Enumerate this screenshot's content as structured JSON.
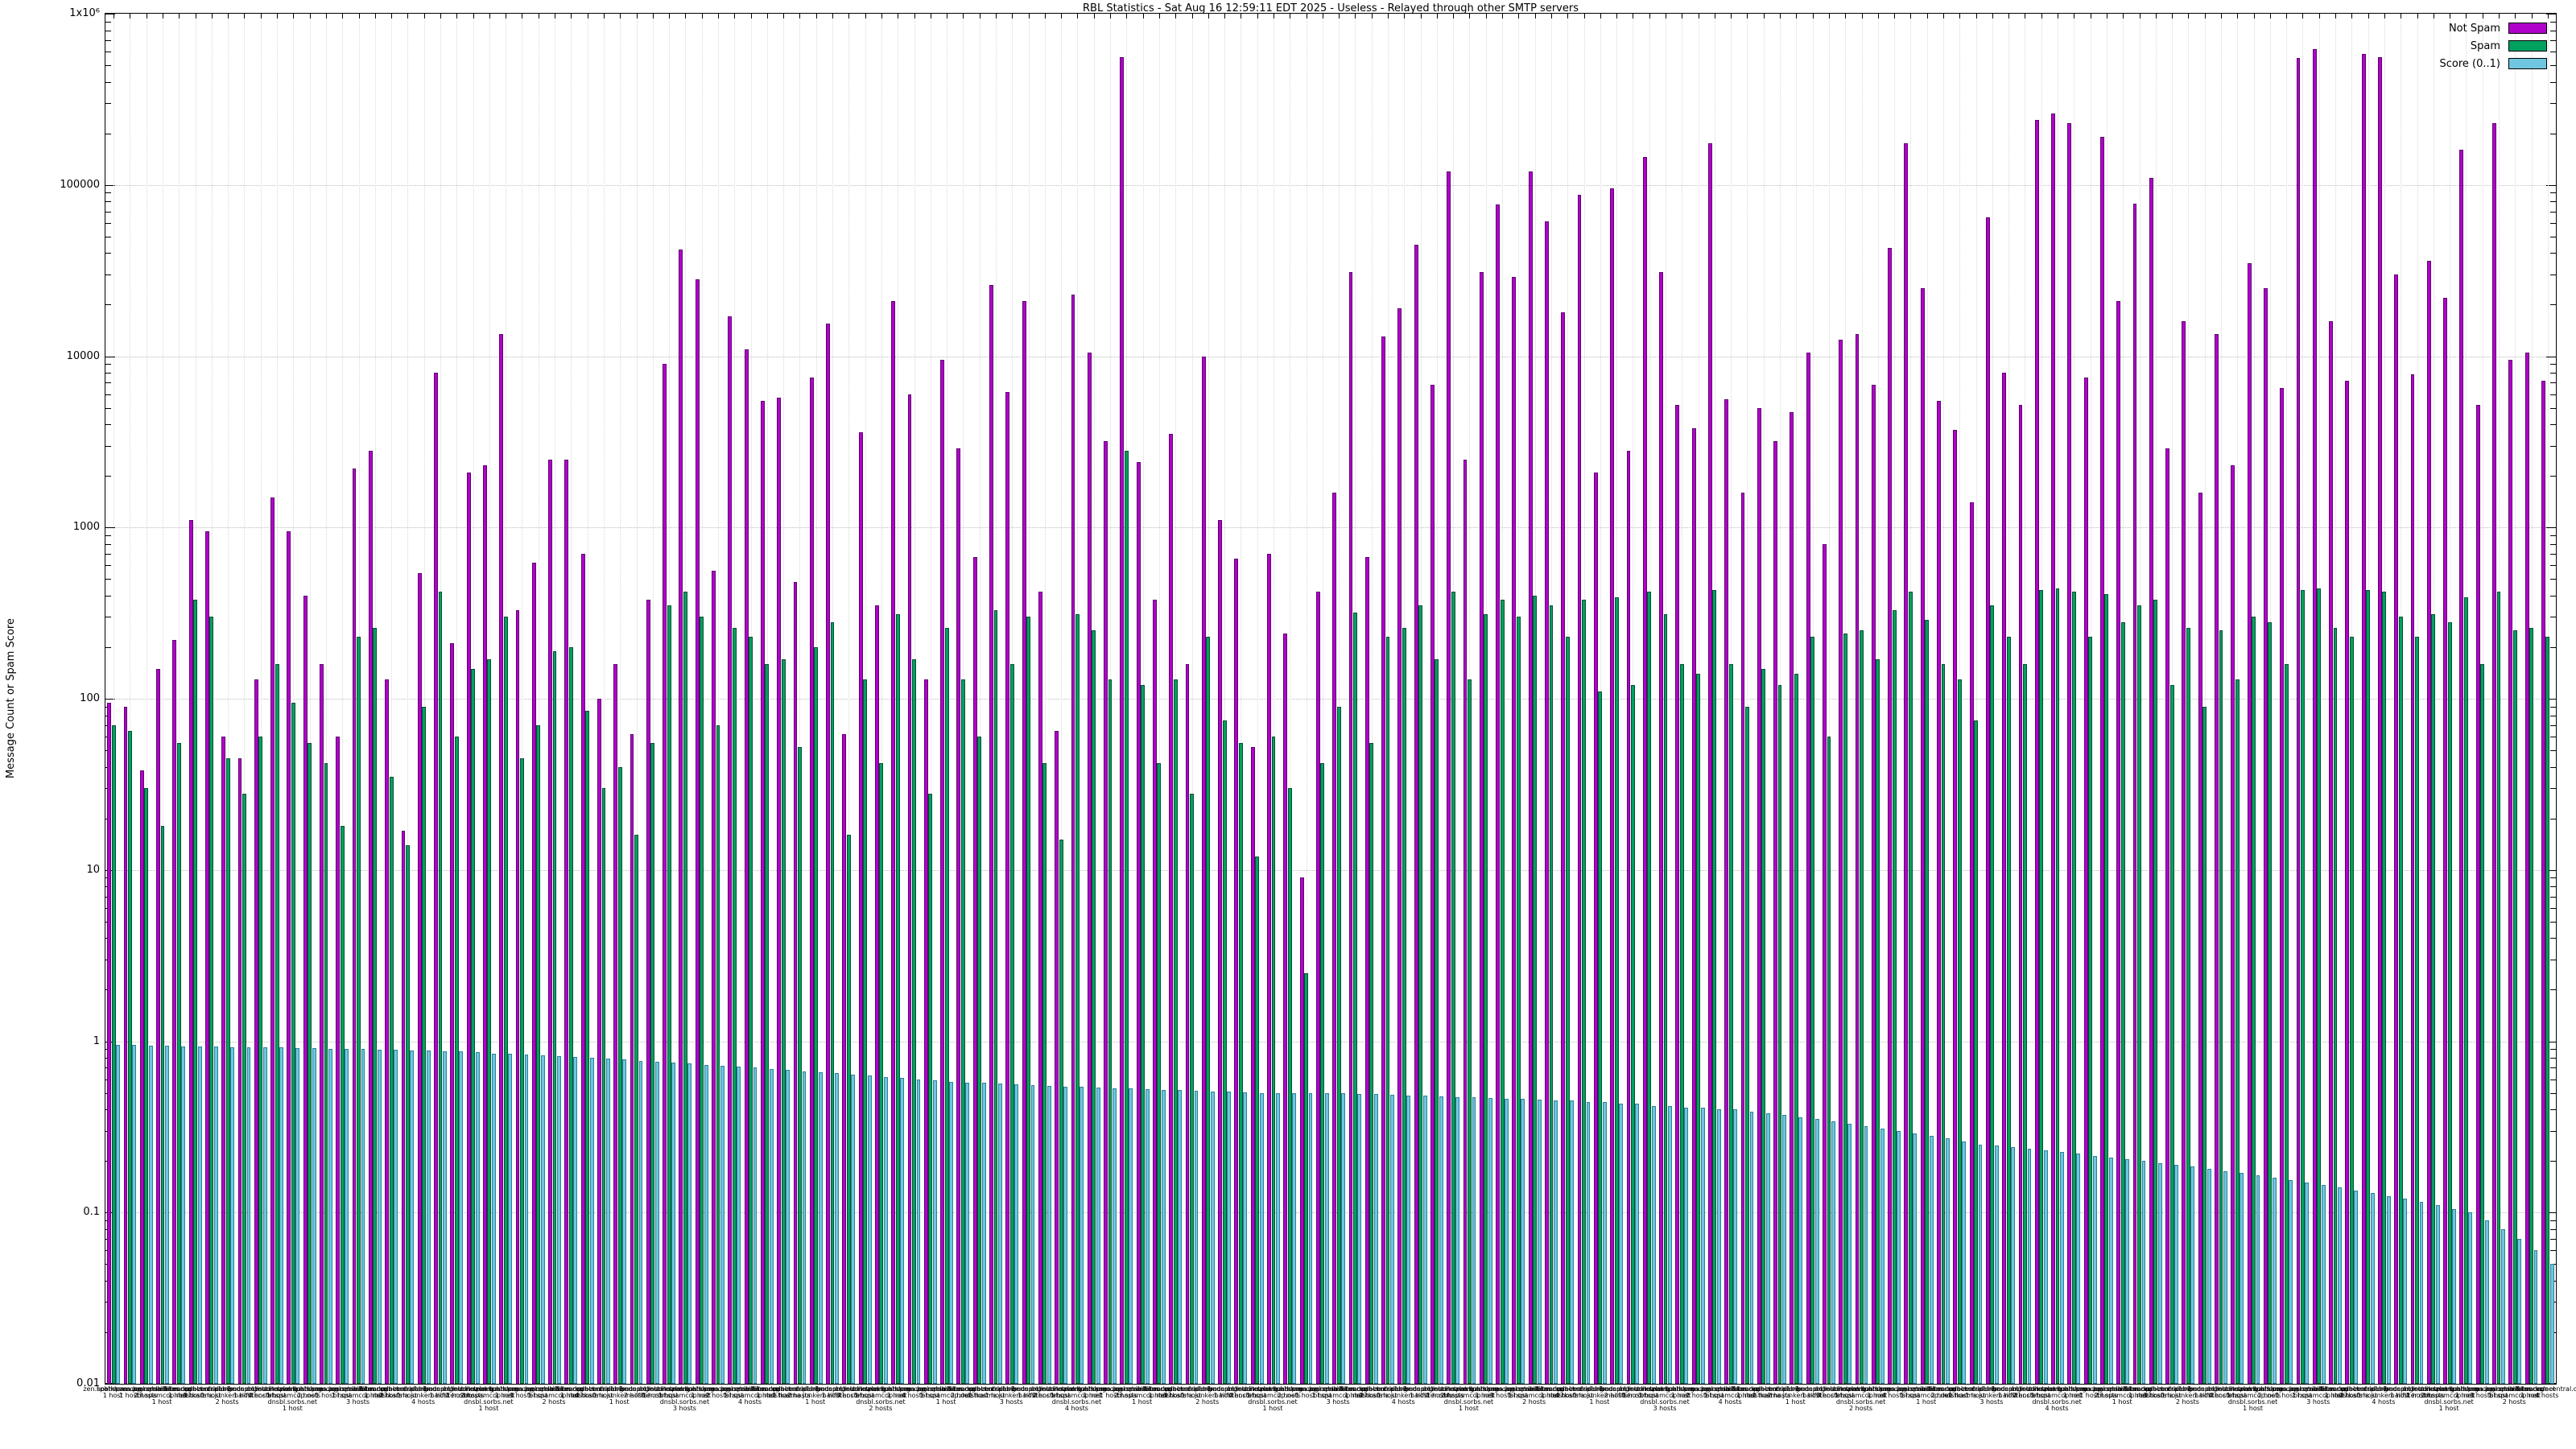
{
  "window": {
    "title": "RBL Statistics - Sat Aug 16 12:59:11 EDT 2025 - Useless - Relayed through other SMTP servers"
  },
  "legend": {
    "position": "top-right",
    "entries": [
      {
        "label": "Not Spam",
        "color": "#b100cb"
      },
      {
        "label": "Spam",
        "color": "#00a060"
      },
      {
        "label": "Score (0..1)",
        "color": "#6fc6e0"
      }
    ]
  },
  "chart_data": {
    "type": "bar",
    "title": "RBL Statistics - Sat Aug 16 12:59:11 EDT 2025 - Useless - Relayed through other SMTP servers",
    "xlabel": "",
    "ylabel": "Message Count or Spam Score",
    "yscale": "log",
    "ylim": [
      0.01,
      1000000
    ],
    "grid": true,
    "legend_position": "top-right",
    "ytick_labels": [
      "1x10⁶",
      "100000",
      "10000",
      "1000",
      "100",
      "10",
      "1",
      "0.1",
      "0.01"
    ],
    "ytick_values": [
      1000000,
      100000,
      10000,
      1000,
      100,
      10,
      1,
      0.1,
      0.01
    ],
    "x_label_rbl_pool": [
      [
        "zen.spamhaus.org"
      ],
      [
        "bl.spamcop.net"
      ],
      [
        "hostkarma.junkemailfilter.com"
      ],
      [
        "zen.spamhaus.org",
        "bl.spamcop.net"
      ],
      [
        "dnsbl.sorbs.net"
      ],
      [
        "b.barracudacentral.org"
      ],
      [
        "psbl.surriel.com"
      ],
      [
        "zen.spamhaus.org",
        "hostkarma.junkemailfilter.com"
      ],
      [
        "dnsbl-1.uceprotect.net"
      ],
      [
        "ix.dnsbl.manitu.net"
      ],
      [
        "list.dnswl.org"
      ],
      [
        "zen.spamhaus.org",
        "bl.spamcop.net",
        "dnsbl.sorbs.net"
      ]
    ],
    "x_label_hosts_pool": [
      "1 host",
      "1 host",
      "2 hosts",
      "1 host",
      "1 host",
      "3 hosts",
      "1 host",
      "2 hosts",
      "1 host",
      "4 hosts"
    ],
    "series": [
      {
        "name": "Not Spam",
        "key": "not-spam",
        "color": "#b100cb",
        "border": "#5e006e",
        "values": [
          95,
          90,
          38,
          150,
          220,
          1100,
          950,
          60,
          45,
          130,
          1500,
          950,
          400,
          160,
          60,
          2200,
          2800,
          130,
          17,
          540,
          8000,
          210,
          2100,
          2300,
          13500,
          330,
          620,
          2500,
          2500,
          700,
          100,
          160,
          62,
          380,
          9000,
          42000,
          28000,
          560,
          17000,
          11000,
          5500,
          5700,
          480,
          7500,
          15500,
          62,
          3600,
          350,
          21000,
          6000,
          130,
          9500,
          2900,
          670,
          26000,
          6200,
          21000,
          420,
          65,
          23000,
          10500,
          3200,
          560000,
          2400,
          380,
          3500,
          160,
          10000,
          1100,
          660,
          52,
          700,
          240,
          9,
          420,
          1600,
          31000,
          670,
          13000,
          19000,
          45000,
          6800,
          120000,
          2500,
          31000,
          77000,
          29000,
          120000,
          61000,
          18000,
          88000,
          2100,
          95000,
          2800,
          145000,
          31000,
          5200,
          3800,
          175000,
          5600,
          1600,
          5000,
          3200,
          4700,
          10500,
          800,
          12500,
          13500,
          6800,
          43000,
          175000,
          25000,
          5500,
          3700,
          1400,
          65000,
          8000,
          5200,
          240000,
          260000,
          230000,
          7500,
          190000,
          21000,
          78000,
          110000,
          2900,
          16000,
          1600,
          13500,
          2300,
          35000,
          25000,
          6500,
          550000,
          620000,
          16000,
          7200,
          580000,
          560000,
          30000,
          7800,
          36000,
          22000,
          160000,
          5200,
          230000,
          9500,
          10500,
          7200
        ]
      },
      {
        "name": "Spam",
        "key": "spam",
        "color": "#00a060",
        "border": "#00502f",
        "values": [
          70,
          65,
          30,
          18,
          55,
          380,
          300,
          45,
          28,
          60,
          160,
          95,
          55,
          42,
          18,
          230,
          260,
          35,
          14,
          90,
          420,
          60,
          150,
          170,
          300,
          45,
          70,
          190,
          200,
          85,
          30,
          40,
          16,
          55,
          350,
          420,
          300,
          70,
          260,
          230,
          160,
          170,
          52,
          200,
          280,
          16,
          130,
          42,
          310,
          170,
          28,
          260,
          130,
          60,
          330,
          160,
          300,
          42,
          15,
          310,
          250,
          130,
          2800,
          120,
          42,
          130,
          28,
          230,
          75,
          55,
          12,
          60,
          30,
          2.5,
          42,
          90,
          320,
          55,
          230,
          260,
          350,
          170,
          420,
          130,
          310,
          380,
          300,
          400,
          350,
          230,
          380,
          110,
          390,
          120,
          420,
          310,
          160,
          140,
          430,
          160,
          90,
          150,
          120,
          140,
          230,
          60,
          240,
          250,
          170,
          330,
          420,
          290,
          160,
          130,
          75,
          350,
          230,
          160,
          430,
          440,
          420,
          230,
          410,
          280,
          350,
          380,
          120,
          260,
          90,
          250,
          130,
          300,
          280,
          160,
          430,
          440,
          260,
          230,
          430,
          420,
          300,
          230,
          310,
          280,
          390,
          160,
          420,
          250,
          260,
          230
        ]
      },
      {
        "name": "Score (0..1)",
        "key": "score",
        "color": "#6fc6e0",
        "border": "#2b7f99",
        "values": [
          0.95,
          0.95,
          0.94,
          0.94,
          0.93,
          0.93,
          0.93,
          0.92,
          0.92,
          0.92,
          0.92,
          0.91,
          0.91,
          0.9,
          0.9,
          0.9,
          0.89,
          0.89,
          0.88,
          0.88,
          0.87,
          0.87,
          0.86,
          0.85,
          0.85,
          0.84,
          0.83,
          0.82,
          0.81,
          0.8,
          0.79,
          0.78,
          0.77,
          0.76,
          0.75,
          0.74,
          0.73,
          0.72,
          0.71,
          0.7,
          0.69,
          0.68,
          0.67,
          0.66,
          0.65,
          0.64,
          0.63,
          0.62,
          0.61,
          0.6,
          0.59,
          0.58,
          0.575,
          0.57,
          0.565,
          0.56,
          0.555,
          0.55,
          0.545,
          0.54,
          0.535,
          0.53,
          0.53,
          0.525,
          0.52,
          0.52,
          0.515,
          0.51,
          0.51,
          0.505,
          0.5,
          0.5,
          0.5,
          0.5,
          0.5,
          0.495,
          0.49,
          0.49,
          0.485,
          0.48,
          0.48,
          0.475,
          0.47,
          0.47,
          0.465,
          0.46,
          0.46,
          0.455,
          0.45,
          0.45,
          0.44,
          0.44,
          0.43,
          0.43,
          0.42,
          0.42,
          0.41,
          0.41,
          0.4,
          0.4,
          0.39,
          0.38,
          0.37,
          0.36,
          0.35,
          0.34,
          0.33,
          0.32,
          0.31,
          0.3,
          0.29,
          0.28,
          0.27,
          0.26,
          0.25,
          0.245,
          0.24,
          0.235,
          0.23,
          0.225,
          0.22,
          0.215,
          0.21,
          0.205,
          0.2,
          0.195,
          0.19,
          0.185,
          0.18,
          0.175,
          0.17,
          0.165,
          0.16,
          0.155,
          0.15,
          0.145,
          0.14,
          0.135,
          0.13,
          0.125,
          0.12,
          0.115,
          0.11,
          0.105,
          0.1,
          0.09,
          0.08,
          0.07,
          0.06,
          0.05
        ]
      }
    ]
  }
}
